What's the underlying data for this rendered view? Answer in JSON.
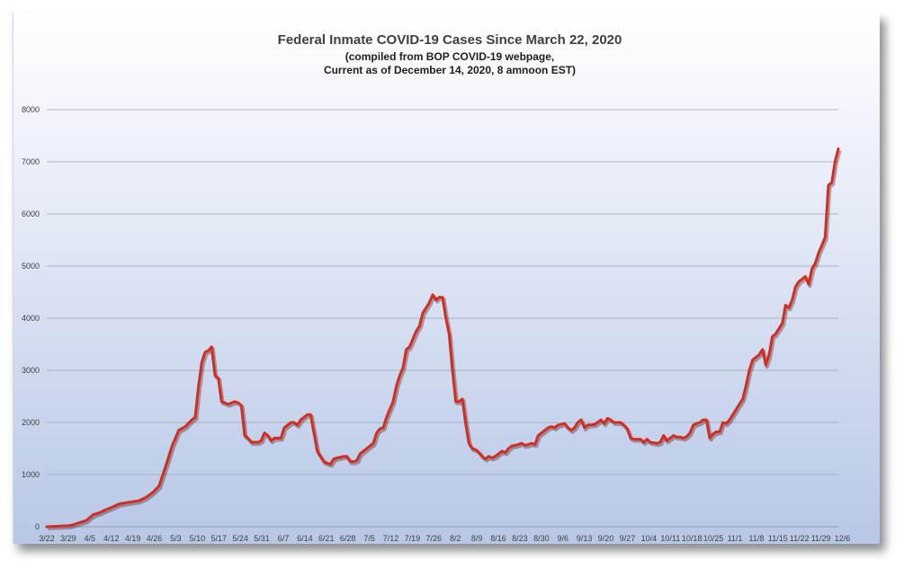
{
  "chart_data": {
    "type": "line",
    "title": "Federal Inmate COVID-19 Cases Since March 22, 2020",
    "subtitle_line1": "(compiled from BOP COVID-19 webpage,",
    "subtitle_line2": "Current as of December 14, 2020, 8 amnoon EST)",
    "xlabel": "",
    "ylabel": "",
    "ylim": [
      0,
      8000
    ],
    "yticks": [
      0,
      1000,
      2000,
      3000,
      4000,
      5000,
      6000,
      7000,
      8000
    ],
    "grid": true,
    "x_tick_labels": [
      "3/22",
      "3/29",
      "4/5",
      "4/12",
      "4/19",
      "4/26",
      "5/3",
      "5/10",
      "5/17",
      "5/24",
      "5/31",
      "6/7",
      "6/14",
      "6/21",
      "6/28",
      "7/5",
      "7/12",
      "7/19",
      "7/26",
      "8/2",
      "8/9",
      "8/16",
      "8/23",
      "8/30",
      "9/6",
      "9/13",
      "9/20",
      "9/27",
      "10/4",
      "10/11",
      "10/18",
      "10/25",
      "11/1",
      "11/8",
      "11/15",
      "11/22",
      "11/29",
      "12/6"
    ],
    "line_color": "#d62b1f",
    "series": [
      {
        "points": [
          [
            0,
            0
          ],
          [
            7,
            20
          ],
          [
            9,
            60
          ],
          [
            12,
            120
          ],
          [
            14,
            230
          ],
          [
            16,
            270
          ],
          [
            18,
            330
          ],
          [
            20,
            380
          ],
          [
            22,
            440
          ],
          [
            24,
            460
          ],
          [
            26,
            480
          ],
          [
            28,
            500
          ],
          [
            30,
            560
          ],
          [
            32,
            650
          ],
          [
            34,
            780
          ],
          [
            36,
            1150
          ],
          [
            38,
            1550
          ],
          [
            40,
            1850
          ],
          [
            42,
            1920
          ],
          [
            44,
            2050
          ],
          [
            45,
            2100
          ],
          [
            46,
            2700
          ],
          [
            47,
            3150
          ],
          [
            48,
            3350
          ],
          [
            49,
            3380
          ],
          [
            50,
            3450
          ],
          [
            51,
            2900
          ],
          [
            52,
            2850
          ],
          [
            53,
            2400
          ],
          [
            55,
            2350
          ],
          [
            57,
            2400
          ],
          [
            58,
            2380
          ],
          [
            59,
            2330
          ],
          [
            60,
            1750
          ],
          [
            61,
            1700
          ],
          [
            62,
            1620
          ],
          [
            64,
            1620
          ],
          [
            65,
            1650
          ],
          [
            66,
            1800
          ],
          [
            67,
            1750
          ],
          [
            68,
            1650
          ],
          [
            69,
            1700
          ],
          [
            71,
            1700
          ],
          [
            72,
            1900
          ],
          [
            73,
            1950
          ],
          [
            74,
            2000
          ],
          [
            75,
            2000
          ],
          [
            76,
            1950
          ],
          [
            77,
            2050
          ],
          [
            78,
            2100
          ],
          [
            79,
            2150
          ],
          [
            80,
            2150
          ],
          [
            81,
            1800
          ],
          [
            82,
            1450
          ],
          [
            83,
            1350
          ],
          [
            84,
            1250
          ],
          [
            85,
            1220
          ],
          [
            86,
            1200
          ],
          [
            87,
            1300
          ],
          [
            88,
            1320
          ],
          [
            90,
            1350
          ],
          [
            91,
            1350
          ],
          [
            92,
            1250
          ],
          [
            93,
            1250
          ],
          [
            94,
            1270
          ],
          [
            95,
            1400
          ],
          [
            96,
            1450
          ],
          [
            98,
            1550
          ],
          [
            99,
            1600
          ],
          [
            100,
            1800
          ],
          [
            101,
            1880
          ],
          [
            102,
            1900
          ],
          [
            103,
            2100
          ],
          [
            104,
            2250
          ],
          [
            105,
            2400
          ],
          [
            106,
            2700
          ],
          [
            107,
            2900
          ],
          [
            108,
            3050
          ],
          [
            109,
            3400
          ],
          [
            110,
            3450
          ],
          [
            111,
            3600
          ],
          [
            112,
            3750
          ],
          [
            113,
            3850
          ],
          [
            114,
            4100
          ],
          [
            115,
            4200
          ],
          [
            116,
            4300
          ],
          [
            117,
            4450
          ],
          [
            118,
            4350
          ],
          [
            119,
            4400
          ],
          [
            120,
            4400
          ],
          [
            121,
            4000
          ],
          [
            122,
            3700
          ],
          [
            123,
            3000
          ],
          [
            124,
            2400
          ],
          [
            125,
            2400
          ],
          [
            126,
            2450
          ],
          [
            127,
            1980
          ],
          [
            128,
            1600
          ],
          [
            129,
            1500
          ],
          [
            130,
            1480
          ],
          [
            131,
            1430
          ],
          [
            132,
            1350
          ],
          [
            133,
            1300
          ],
          [
            134,
            1350
          ],
          [
            135,
            1320
          ],
          [
            136,
            1350
          ],
          [
            137,
            1400
          ],
          [
            138,
            1450
          ],
          [
            139,
            1420
          ],
          [
            140,
            1500
          ],
          [
            141,
            1550
          ],
          [
            142,
            1560
          ],
          [
            143,
            1580
          ],
          [
            144,
            1600
          ],
          [
            145,
            1560
          ],
          [
            147,
            1600
          ],
          [
            148,
            1580
          ],
          [
            149,
            1750
          ],
          [
            150,
            1800
          ],
          [
            151,
            1850
          ],
          [
            152,
            1900
          ],
          [
            153,
            1920
          ],
          [
            154,
            1900
          ],
          [
            155,
            1950
          ],
          [
            157,
            1980
          ],
          [
            158,
            1900
          ],
          [
            159,
            1850
          ],
          [
            160,
            1900
          ],
          [
            161,
            2000
          ],
          [
            162,
            2050
          ],
          [
            163,
            1900
          ],
          [
            164,
            1950
          ],
          [
            166,
            1960
          ],
          [
            167,
            2000
          ],
          [
            168,
            2050
          ],
          [
            169,
            1980
          ],
          [
            170,
            2080
          ],
          [
            171,
            2050
          ],
          [
            172,
            2000
          ],
          [
            174,
            2000
          ],
          [
            175,
            1950
          ],
          [
            176,
            1880
          ],
          [
            177,
            1700
          ],
          [
            178,
            1680
          ],
          [
            180,
            1680
          ],
          [
            181,
            1620
          ],
          [
            182,
            1680
          ],
          [
            183,
            1620
          ],
          [
            185,
            1600
          ],
          [
            186,
            1620
          ],
          [
            187,
            1750
          ],
          [
            188,
            1650
          ],
          [
            189,
            1700
          ],
          [
            190,
            1750
          ],
          [
            191,
            1720
          ],
          [
            192,
            1720
          ],
          [
            193,
            1700
          ],
          [
            194,
            1730
          ],
          [
            195,
            1800
          ],
          [
            196,
            1950
          ],
          [
            197,
            1980
          ],
          [
            198,
            2000
          ],
          [
            199,
            2050
          ],
          [
            200,
            2050
          ],
          [
            201,
            1700
          ],
          [
            202,
            1780
          ],
          [
            203,
            1820
          ],
          [
            204,
            1820
          ],
          [
            205,
            2000
          ],
          [
            206,
            1980
          ],
          [
            207,
            2050
          ],
          [
            208,
            2150
          ],
          [
            209,
            2250
          ],
          [
            210,
            2350
          ],
          [
            211,
            2450
          ],
          [
            212,
            2700
          ],
          [
            213,
            3000
          ],
          [
            214,
            3200
          ],
          [
            215,
            3250
          ],
          [
            216,
            3300
          ],
          [
            217,
            3400
          ],
          [
            218,
            3100
          ],
          [
            219,
            3300
          ],
          [
            220,
            3650
          ],
          [
            221,
            3700
          ],
          [
            222,
            3800
          ],
          [
            223,
            3900
          ],
          [
            224,
            4250
          ],
          [
            225,
            4200
          ],
          [
            226,
            4350
          ],
          [
            227,
            4600
          ],
          [
            228,
            4700
          ],
          [
            229,
            4750
          ],
          [
            230,
            4800
          ],
          [
            231,
            4650
          ],
          [
            232,
            4950
          ],
          [
            233,
            5050
          ],
          [
            234,
            5250
          ],
          [
            235,
            5400
          ],
          [
            236,
            5550
          ],
          [
            237,
            6550
          ],
          [
            238,
            6600
          ],
          [
            239,
            7000
          ],
          [
            240,
            7250
          ]
        ]
      }
    ]
  }
}
